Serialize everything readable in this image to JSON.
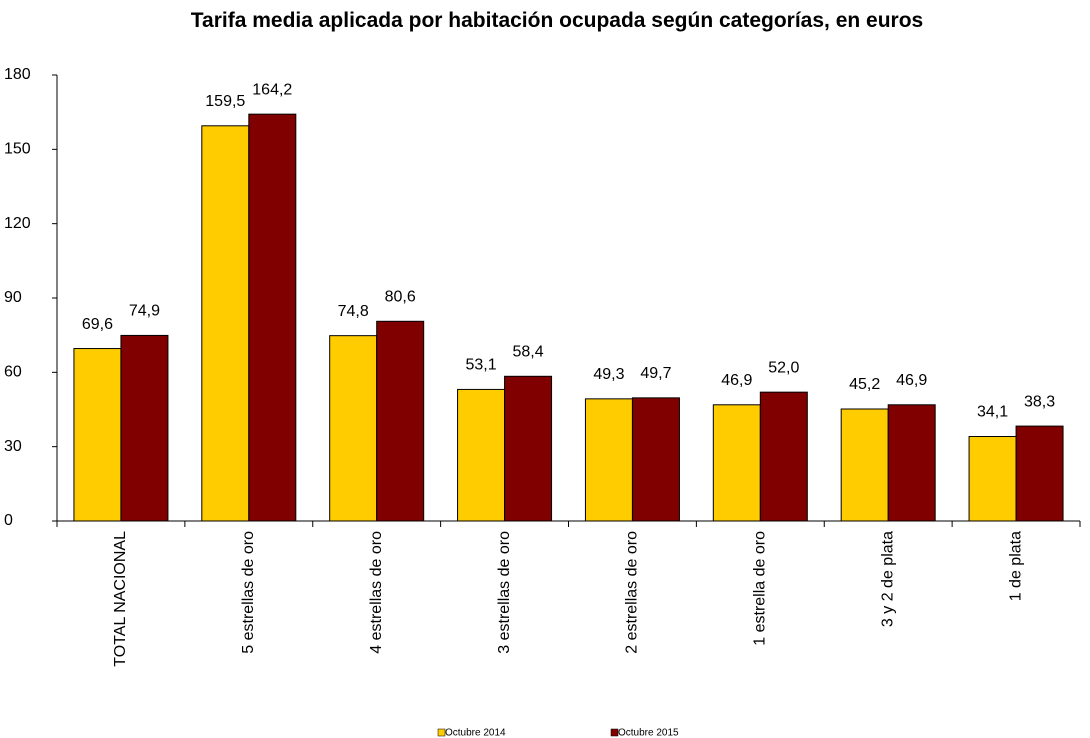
{
  "chart_data": {
    "type": "bar",
    "title": "Tarifa media aplicada por habitación ocupada según categorías, en euros",
    "categories": [
      "TOTAL NACIONAL",
      "5 estrellas de oro",
      "4 estrellas de oro",
      "3 estrellas de oro",
      "2 estrellas de oro",
      "1 estrella de oro",
      "3 y 2 de plata",
      "1 de plata"
    ],
    "series": [
      {
        "name": "Octubre 2014",
        "color": "#FFCC00",
        "values": [
          69.6,
          159.5,
          74.8,
          53.1,
          49.3,
          46.9,
          45.2,
          34.1
        ],
        "value_labels": [
          "69,6",
          "159,5",
          "74,8",
          "53,1",
          "49,3",
          "46,9",
          "45,2",
          "34,1"
        ]
      },
      {
        "name": "Octubre 2015",
        "color": "#800000",
        "values": [
          74.9,
          164.2,
          80.6,
          58.4,
          49.7,
          52.0,
          46.9,
          38.3
        ],
        "value_labels": [
          "74,9",
          "164,2",
          "80,6",
          "58,4",
          "49,7",
          "52,0",
          "46,9",
          "38,3"
        ]
      }
    ],
    "ylim": [
      0,
      180
    ],
    "yticks": [
      0,
      30,
      60,
      90,
      120,
      150,
      180
    ],
    "grid": false,
    "legend": "bottom"
  }
}
